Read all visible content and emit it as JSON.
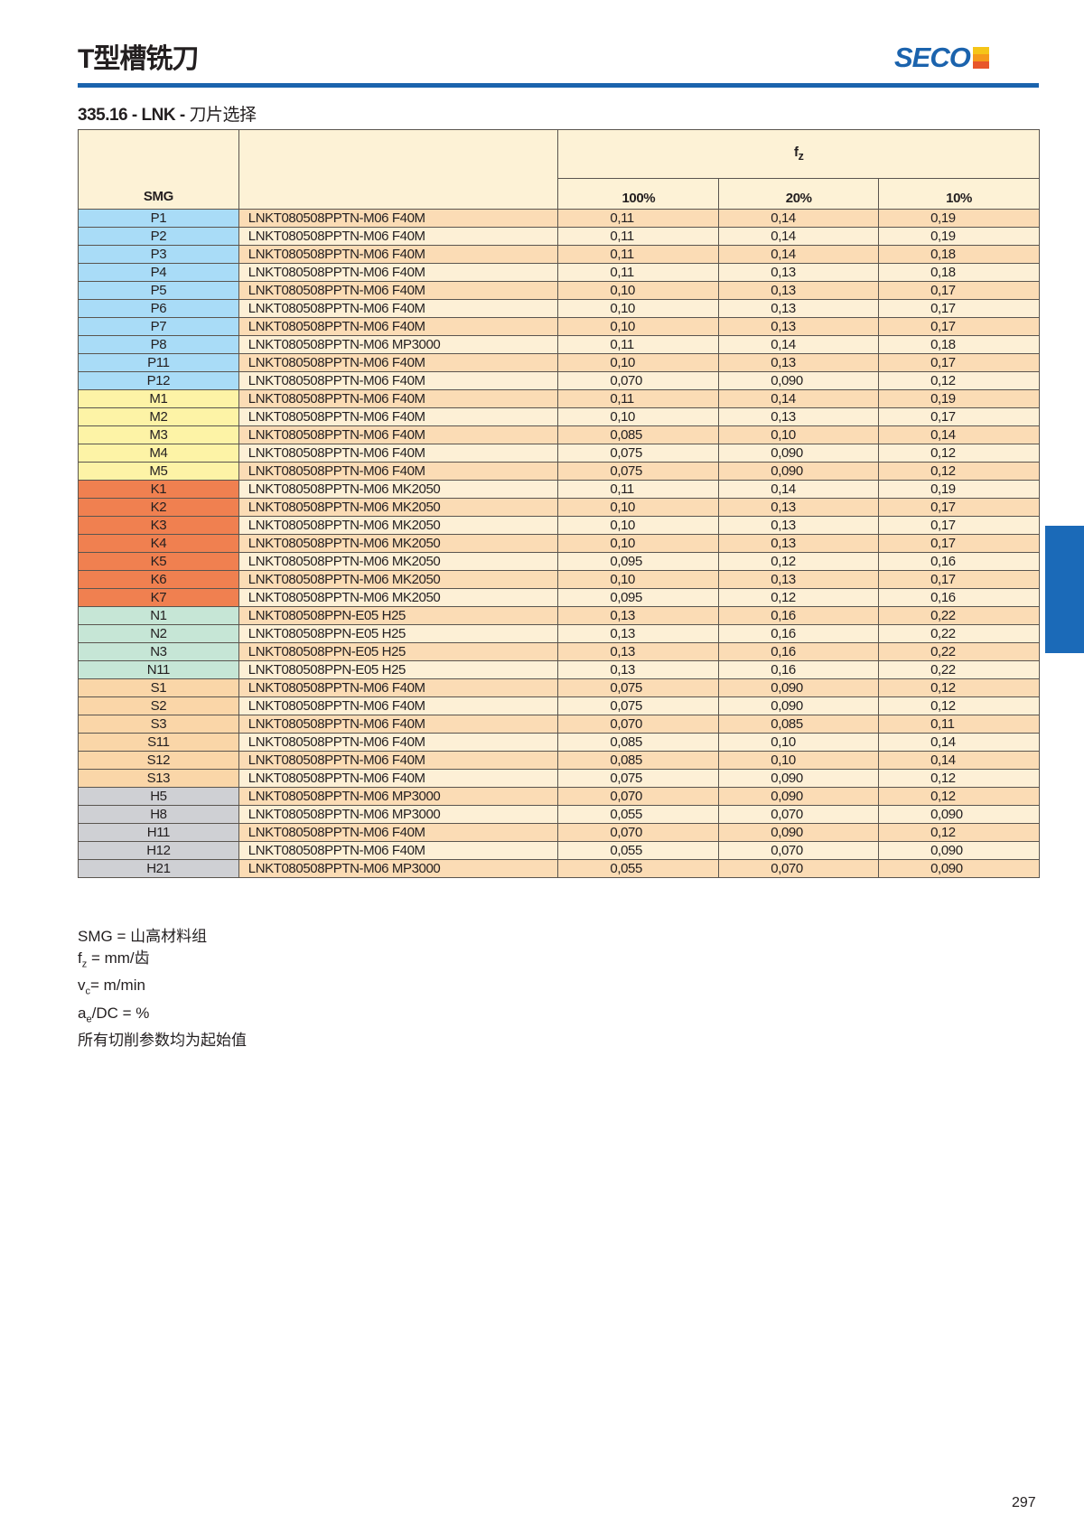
{
  "header": {
    "title": "T型槽铣刀",
    "logo_text": "SECO",
    "logo_colors": [
      "#f5c518",
      "#f59a1b",
      "#e8562a"
    ]
  },
  "section": {
    "code": "335.16 - LNK - ",
    "title": "刀片选择"
  },
  "colors": {
    "accent": "#1b63ad",
    "row_odd": "#fbdcb5",
    "row_even": "#fdf0d6",
    "header_bg": "#fdf2d6",
    "smg": {
      "P": "#a9dcf7",
      "M": "#fdf3a6",
      "K": "#f08050",
      "N": "#c6e6d6",
      "S": "#fad6a8",
      "H": "#cfd0d4"
    }
  },
  "table": {
    "col_smg": "SMG",
    "fz_main": "f",
    "fz_sub": "z",
    "percent_headers": [
      "100%",
      "20%",
      "10%"
    ],
    "rows": [
      [
        "P1",
        "LNKT080508PPTN-M06 F40M",
        "0,11",
        "0,14",
        "0,19"
      ],
      [
        "P2",
        "LNKT080508PPTN-M06 F40M",
        "0,11",
        "0,14",
        "0,19"
      ],
      [
        "P3",
        "LNKT080508PPTN-M06 F40M",
        "0,11",
        "0,14",
        "0,18"
      ],
      [
        "P4",
        "LNKT080508PPTN-M06 F40M",
        "0,11",
        "0,13",
        "0,18"
      ],
      [
        "P5",
        "LNKT080508PPTN-M06 F40M",
        "0,10",
        "0,13",
        "0,17"
      ],
      [
        "P6",
        "LNKT080508PPTN-M06 F40M",
        "0,10",
        "0,13",
        "0,17"
      ],
      [
        "P7",
        "LNKT080508PPTN-M06 F40M",
        "0,10",
        "0,13",
        "0,17"
      ],
      [
        "P8",
        "LNKT080508PPTN-M06 MP3000",
        "0,11",
        "0,14",
        "0,18"
      ],
      [
        "P11",
        "LNKT080508PPTN-M06 F40M",
        "0,10",
        "0,13",
        "0,17"
      ],
      [
        "P12",
        "LNKT080508PPTN-M06 F40M",
        "0,070",
        "0,090",
        "0,12"
      ],
      [
        "M1",
        "LNKT080508PPTN-M06 F40M",
        "0,11",
        "0,14",
        "0,19"
      ],
      [
        "M2",
        "LNKT080508PPTN-M06 F40M",
        "0,10",
        "0,13",
        "0,17"
      ],
      [
        "M3",
        "LNKT080508PPTN-M06 F40M",
        "0,085",
        "0,10",
        "0,14"
      ],
      [
        "M4",
        "LNKT080508PPTN-M06 F40M",
        "0,075",
        "0,090",
        "0,12"
      ],
      [
        "M5",
        "LNKT080508PPTN-M06 F40M",
        "0,075",
        "0,090",
        "0,12"
      ],
      [
        "K1",
        "LNKT080508PPTN-M06 MK2050",
        "0,11",
        "0,14",
        "0,19"
      ],
      [
        "K2",
        "LNKT080508PPTN-M06 MK2050",
        "0,10",
        "0,13",
        "0,17"
      ],
      [
        "K3",
        "LNKT080508PPTN-M06 MK2050",
        "0,10",
        "0,13",
        "0,17"
      ],
      [
        "K4",
        "LNKT080508PPTN-M06 MK2050",
        "0,10",
        "0,13",
        "0,17"
      ],
      [
        "K5",
        "LNKT080508PPTN-M06 MK2050",
        "0,095",
        "0,12",
        "0,16"
      ],
      [
        "K6",
        "LNKT080508PPTN-M06 MK2050",
        "0,10",
        "0,13",
        "0,17"
      ],
      [
        "K7",
        "LNKT080508PPTN-M06 MK2050",
        "0,095",
        "0,12",
        "0,16"
      ],
      [
        "N1",
        "LNKT080508PPN-E05 H25",
        "0,13",
        "0,16",
        "0,22"
      ],
      [
        "N2",
        "LNKT080508PPN-E05 H25",
        "0,13",
        "0,16",
        "0,22"
      ],
      [
        "N3",
        "LNKT080508PPN-E05 H25",
        "0,13",
        "0,16",
        "0,22"
      ],
      [
        "N11",
        "LNKT080508PPN-E05 H25",
        "0,13",
        "0,16",
        "0,22"
      ],
      [
        "S1",
        "LNKT080508PPTN-M06 F40M",
        "0,075",
        "0,090",
        "0,12"
      ],
      [
        "S2",
        "LNKT080508PPTN-M06 F40M",
        "0,075",
        "0,090",
        "0,12"
      ],
      [
        "S3",
        "LNKT080508PPTN-M06 F40M",
        "0,070",
        "0,085",
        "0,11"
      ],
      [
        "S11",
        "LNKT080508PPTN-M06 F40M",
        "0,085",
        "0,10",
        "0,14"
      ],
      [
        "S12",
        "LNKT080508PPTN-M06 F40M",
        "0,085",
        "0,10",
        "0,14"
      ],
      [
        "S13",
        "LNKT080508PPTN-M06 F40M",
        "0,075",
        "0,090",
        "0,12"
      ],
      [
        "H5",
        "LNKT080508PPTN-M06 MP3000",
        "0,070",
        "0,090",
        "0,12"
      ],
      [
        "H8",
        "LNKT080508PPTN-M06 MP3000",
        "0,055",
        "0,070",
        "0,090"
      ],
      [
        "H11",
        "LNKT080508PPTN-M06 F40M",
        "0,070",
        "0,090",
        "0,12"
      ],
      [
        "H12",
        "LNKT080508PPTN-M06 F40M",
        "0,055",
        "0,070",
        "0,090"
      ],
      [
        "H21",
        "LNKT080508PPTN-M06 MP3000",
        "0,055",
        "0,070",
        "0,090"
      ]
    ]
  },
  "notes": {
    "smg": "SMG = 山高材料组",
    "fz_sym": "f",
    "fz_sub": "z",
    "fz_def": " = mm/齿",
    "vc_sym": "v",
    "vc_sub": "c",
    "vc_def": "= m/min",
    "ae_sym": "a",
    "ae_sub": "e",
    "ae_def": "/DC = %",
    "start": "所有切削参数均为起始值"
  },
  "page_number": "297"
}
